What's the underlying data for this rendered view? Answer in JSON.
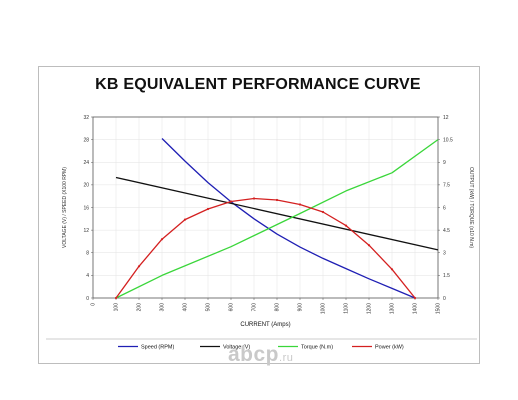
{
  "watermark": {
    "brand": "abcp",
    "tld": ".ru"
  },
  "chart_data": {
    "type": "line",
    "title": "KB EQUIVALENT PERFORMANCE CURVE",
    "xlabel": "CURRENT (Amps)",
    "ylabel_left": "VOLTAGE (V) / SPEED (X100 RPM)",
    "ylabel_right": "OUTPUT (kW) / TORQUE (x10 N.m)",
    "xlim": [
      0,
      1500
    ],
    "ylim_left": [
      0,
      32
    ],
    "ylim_right": [
      0,
      12
    ],
    "x_ticks": [
      "0",
      "100",
      "200",
      "300",
      "400",
      "500",
      "600",
      "700",
      "800",
      "900",
      "1000",
      "1100",
      "1200",
      "1300",
      "1400",
      "1500"
    ],
    "y_left_ticks": [
      "0",
      "4",
      "8",
      "12",
      "16",
      "20",
      "24",
      "28",
      "32"
    ],
    "y_right_ticks": [
      "0",
      "1.5",
      "3",
      "4.5",
      "6",
      "7.5",
      "9",
      "10.5",
      "12"
    ],
    "grid": true,
    "legend_position": "bottom",
    "series": [
      {
        "name": "Speed (RPM)",
        "axis": "left",
        "color": "#1f1fb4",
        "x": [
          300,
          400,
          500,
          600,
          700,
          800,
          900,
          1000,
          1100,
          1200,
          1300,
          1400
        ],
        "y": [
          28.2,
          24.2,
          20.4,
          17.0,
          14.0,
          11.3,
          9.0,
          7.0,
          5.2,
          3.4,
          1.7,
          0.0
        ]
      },
      {
        "name": "Voltage (V)",
        "axis": "left",
        "color": "#111111",
        "x": [
          100,
          1500
        ],
        "y": [
          21.3,
          8.5
        ]
      },
      {
        "name": "Torque (N.m)",
        "axis": "right",
        "color": "#3ad63a",
        "x": [
          100,
          300,
          600,
          900,
          1100,
          1300,
          1500
        ],
        "y": [
          0.0,
          1.5,
          3.4,
          5.6,
          7.1,
          8.3,
          10.5
        ]
      },
      {
        "name": "Power (kW)",
        "axis": "right",
        "color": "#d42020",
        "x": [
          100,
          200,
          300,
          400,
          500,
          600,
          700,
          800,
          900,
          1000,
          1100,
          1200,
          1300,
          1400
        ],
        "y": [
          0.0,
          2.1,
          3.9,
          5.2,
          5.9,
          6.4,
          6.6,
          6.5,
          6.2,
          5.7,
          4.8,
          3.5,
          1.9,
          0.0
        ]
      }
    ]
  }
}
